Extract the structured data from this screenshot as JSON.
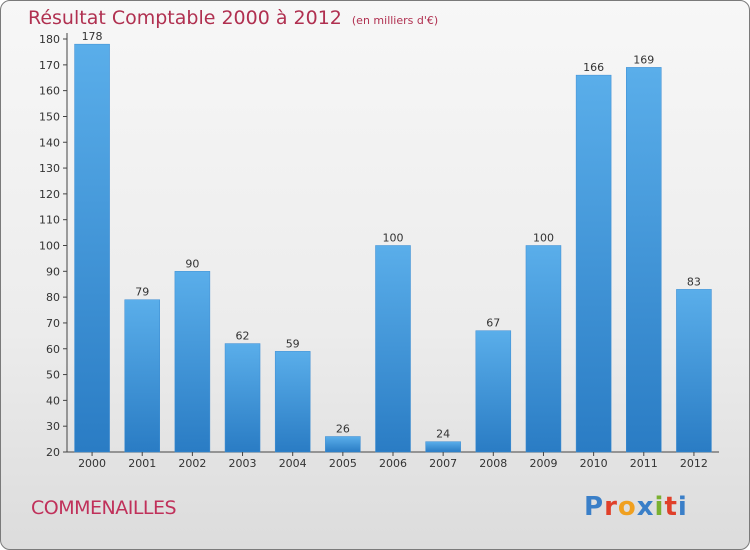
{
  "header": {
    "title": "Résultat Comptable 2000 à 2012",
    "subtitle": "(en milliers d'€)"
  },
  "footer": {
    "commune": "COMMENAILLES",
    "logo_letters": [
      "P",
      "r",
      "o",
      "x",
      "i",
      "t",
      "i"
    ],
    "logo_colors": [
      "#3a7fc8",
      "#e0402a",
      "#f0a020",
      "#3a7fc8",
      "#7ab030",
      "#e0402a",
      "#3a7fc8"
    ]
  },
  "chart_data": {
    "type": "bar",
    "title": "Résultat Comptable 2000 à 2012",
    "subtitle": "(en milliers d'€)",
    "categories": [
      "2000",
      "2001",
      "2002",
      "2003",
      "2004",
      "2005",
      "2006",
      "2007",
      "2008",
      "2009",
      "2010",
      "2011",
      "2012"
    ],
    "values": [
      178,
      79,
      90,
      62,
      59,
      26,
      100,
      24,
      67,
      100,
      166,
      169,
      83
    ],
    "ylim": [
      20,
      180
    ],
    "yticks": [
      20,
      30,
      40,
      50,
      60,
      70,
      80,
      90,
      100,
      110,
      120,
      130,
      140,
      150,
      160,
      170,
      180
    ],
    "grid": false,
    "bar_color": "#4a9ee0",
    "background": "#ececec"
  }
}
